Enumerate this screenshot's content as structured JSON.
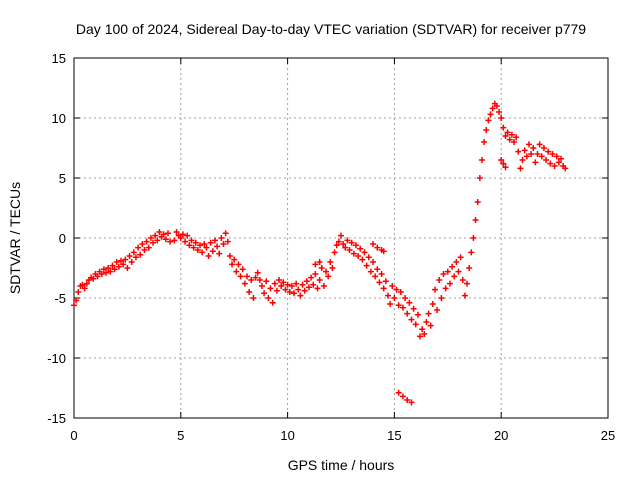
{
  "chart_data": {
    "type": "scatter",
    "title": "Day 100 of 2024, Sidereal Day-to-day VTEC variation (SDTVAR) for receiver p779",
    "xlabel": "GPS time / hours",
    "ylabel": "SDTVAR / TECUs",
    "xlim": [
      0,
      25
    ],
    "ylim": [
      -15,
      15
    ],
    "xticks": [
      "0",
      "5",
      "10",
      "15",
      "20",
      "25"
    ],
    "yticks": [
      "-15",
      "-10",
      "-5",
      "0",
      "5",
      "10",
      "15"
    ],
    "grid": true,
    "marker": "plus",
    "color": "#ff0000",
    "series": [
      {
        "points": [
          [
            0.0,
            -5.6
          ],
          [
            0.1,
            -5.2
          ],
          [
            0.2,
            -4.5
          ],
          [
            0.3,
            -4.0
          ],
          [
            0.4,
            -3.9
          ],
          [
            0.5,
            -4.2
          ],
          [
            0.6,
            -3.8
          ],
          [
            0.7,
            -3.5
          ],
          [
            0.8,
            -3.3
          ],
          [
            0.9,
            -3.4
          ],
          [
            1.0,
            -3.0
          ],
          [
            1.1,
            -3.2
          ],
          [
            1.2,
            -2.8
          ],
          [
            1.3,
            -3.0
          ],
          [
            1.4,
            -2.6
          ],
          [
            1.5,
            -2.9
          ],
          [
            1.6,
            -2.5
          ],
          [
            1.7,
            -2.8
          ],
          [
            1.8,
            -2.3
          ],
          [
            1.9,
            -2.6
          ],
          [
            2.0,
            -2.0
          ],
          [
            2.1,
            -2.4
          ],
          [
            2.2,
            -1.9
          ],
          [
            2.3,
            -2.2
          ],
          [
            2.4,
            -1.8
          ],
          [
            2.5,
            -2.5
          ],
          [
            2.6,
            -1.5
          ],
          [
            2.7,
            -2.0
          ],
          [
            2.8,
            -1.2
          ],
          [
            2.9,
            -1.6
          ],
          [
            3.0,
            -0.8
          ],
          [
            3.1,
            -1.4
          ],
          [
            3.2,
            -0.5
          ],
          [
            3.3,
            -1.0
          ],
          [
            3.4,
            -0.3
          ],
          [
            3.5,
            -0.8
          ],
          [
            3.6,
            0.0
          ],
          [
            3.7,
            -0.4
          ],
          [
            3.8,
            0.2
          ],
          [
            3.9,
            -0.2
          ],
          [
            4.0,
            0.5
          ],
          [
            4.1,
            0.1
          ],
          [
            4.2,
            0.3
          ],
          [
            4.3,
            -0.1
          ],
          [
            4.4,
            0.4
          ],
          [
            4.5,
            -0.3
          ],
          [
            4.7,
            -0.2
          ],
          [
            4.8,
            0.5
          ],
          [
            4.9,
            0.2
          ],
          [
            5.0,
            0.0
          ],
          [
            5.1,
            0.3
          ],
          [
            5.2,
            -0.3
          ],
          [
            5.3,
            0.2
          ],
          [
            5.4,
            -0.6
          ],
          [
            5.5,
            -0.2
          ],
          [
            5.6,
            -0.8
          ],
          [
            5.7,
            -0.4
          ],
          [
            5.8,
            -1.0
          ],
          [
            5.9,
            -0.6
          ],
          [
            6.0,
            -1.2
          ],
          [
            6.1,
            -0.5
          ],
          [
            6.2,
            -0.8
          ],
          [
            6.3,
            -1.5
          ],
          [
            6.4,
            -0.4
          ],
          [
            6.5,
            -1.1
          ],
          [
            6.6,
            -0.2
          ],
          [
            6.7,
            -0.7
          ],
          [
            6.8,
            -1.3
          ],
          [
            6.9,
            0.0
          ],
          [
            7.0,
            -0.5
          ],
          [
            7.1,
            0.4
          ],
          [
            7.2,
            -0.3
          ],
          [
            7.3,
            -1.5
          ],
          [
            7.4,
            -2.2
          ],
          [
            7.5,
            -1.8
          ],
          [
            7.6,
            -2.8
          ],
          [
            7.7,
            -2.2
          ],
          [
            7.8,
            -3.2
          ],
          [
            7.9,
            -2.6
          ],
          [
            8.0,
            -3.8
          ],
          [
            8.1,
            -3.2
          ],
          [
            8.2,
            -4.5
          ],
          [
            8.3,
            -3.5
          ],
          [
            8.4,
            -5.0
          ],
          [
            8.5,
            -3.3
          ],
          [
            8.6,
            -2.9
          ],
          [
            8.7,
            -3.5
          ],
          [
            8.8,
            -4.0
          ],
          [
            8.9,
            -4.6
          ],
          [
            9.0,
            -3.6
          ],
          [
            9.1,
            -5.0
          ],
          [
            9.2,
            -4.2
          ],
          [
            9.3,
            -5.4
          ],
          [
            9.4,
            -3.8
          ],
          [
            9.5,
            -4.4
          ],
          [
            9.6,
            -3.5
          ],
          [
            9.7,
            -4.0
          ],
          [
            9.8,
            -3.7
          ],
          [
            9.9,
            -4.3
          ],
          [
            10.0,
            -3.9
          ],
          [
            10.1,
            -4.5
          ],
          [
            10.2,
            -4.0
          ],
          [
            10.3,
            -4.6
          ],
          [
            10.4,
            -3.8
          ],
          [
            10.5,
            -4.3
          ],
          [
            10.6,
            -4.8
          ],
          [
            10.7,
            -3.9
          ],
          [
            10.8,
            -4.4
          ],
          [
            10.9,
            -3.6
          ],
          [
            11.0,
            -4.1
          ],
          [
            11.1,
            -3.3
          ],
          [
            11.2,
            -3.9
          ],
          [
            11.3,
            -3.0
          ],
          [
            11.4,
            -4.2
          ],
          [
            11.5,
            -3.5
          ],
          [
            11.6,
            -2.5
          ],
          [
            11.7,
            -4.0
          ],
          [
            11.8,
            -2.8
          ],
          [
            11.9,
            -3.2
          ],
          [
            12.0,
            -2.0
          ],
          [
            12.1,
            -2.5
          ],
          [
            11.5,
            -2.0
          ],
          [
            11.3,
            -2.2
          ],
          [
            12.2,
            -1.2
          ],
          [
            12.3,
            -0.6
          ],
          [
            12.4,
            -0.3
          ],
          [
            12.5,
            0.2
          ],
          [
            12.6,
            -0.5
          ],
          [
            12.7,
            -0.8
          ],
          [
            12.8,
            -0.2
          ],
          [
            12.9,
            -1.0
          ],
          [
            13.0,
            -0.4
          ],
          [
            13.1,
            -1.3
          ],
          [
            13.2,
            -0.6
          ],
          [
            13.3,
            -1.5
          ],
          [
            13.4,
            -0.9
          ],
          [
            13.5,
            -1.8
          ],
          [
            13.6,
            -1.2
          ],
          [
            13.7,
            -2.3
          ],
          [
            13.8,
            -1.6
          ],
          [
            13.9,
            -2.8
          ],
          [
            14.0,
            -2.0
          ],
          [
            14.1,
            -3.2
          ],
          [
            14.2,
            -2.6
          ],
          [
            14.3,
            -3.7
          ],
          [
            14.0,
            -0.5
          ],
          [
            14.2,
            -0.8
          ],
          [
            14.4,
            -1.0
          ],
          [
            14.5,
            -1.1
          ],
          [
            14.4,
            -3.0
          ],
          [
            14.5,
            -4.2
          ],
          [
            14.6,
            -3.6
          ],
          [
            14.7,
            -4.8
          ],
          [
            14.8,
            -5.5
          ],
          [
            14.9,
            -4.0
          ],
          [
            15.0,
            -5.0
          ],
          [
            15.1,
            -4.3
          ],
          [
            15.2,
            -5.6
          ],
          [
            15.3,
            -4.5
          ],
          [
            15.4,
            -5.8
          ],
          [
            15.5,
            -5.0
          ],
          [
            15.6,
            -6.3
          ],
          [
            15.7,
            -5.4
          ],
          [
            15.8,
            -6.8
          ],
          [
            15.9,
            -5.9
          ],
          [
            16.0,
            -7.2
          ],
          [
            16.1,
            -6.4
          ],
          [
            16.2,
            -8.2
          ],
          [
            16.3,
            -7.6
          ],
          [
            16.4,
            -8.0
          ],
          [
            16.5,
            -7.0
          ],
          [
            16.6,
            -6.3
          ],
          [
            16.7,
            -7.3
          ],
          [
            16.8,
            -5.5
          ],
          [
            16.9,
            -4.3
          ],
          [
            17.0,
            -6.0
          ],
          [
            17.1,
            -3.5
          ],
          [
            17.2,
            -5.0
          ],
          [
            17.3,
            -3.0
          ],
          [
            17.4,
            -4.2
          ],
          [
            17.5,
            -2.8
          ],
          [
            17.6,
            -3.8
          ],
          [
            17.7,
            -2.4
          ],
          [
            17.8,
            -3.2
          ],
          [
            17.9,
            -2.0
          ],
          [
            18.0,
            -2.8
          ],
          [
            18.1,
            -1.6
          ],
          [
            18.2,
            -3.5
          ],
          [
            18.3,
            -4.8
          ],
          [
            18.4,
            -3.8
          ],
          [
            18.5,
            -2.5
          ],
          [
            18.6,
            -1.2
          ],
          [
            18.7,
            0.0
          ],
          [
            18.8,
            1.5
          ],
          [
            18.9,
            3.0
          ],
          [
            19.0,
            5.0
          ],
          [
            19.1,
            6.5
          ],
          [
            19.2,
            8.0
          ],
          [
            19.3,
            9.0
          ],
          [
            19.4,
            9.8
          ],
          [
            19.5,
            10.3
          ],
          [
            19.6,
            10.8
          ],
          [
            19.7,
            11.2
          ],
          [
            19.8,
            11.0
          ],
          [
            19.9,
            10.5
          ],
          [
            20.0,
            10.0
          ],
          [
            20.1,
            9.2
          ],
          [
            20.2,
            8.5
          ],
          [
            20.3,
            8.8
          ],
          [
            20.4,
            8.2
          ],
          [
            20.5,
            8.6
          ],
          [
            20.6,
            8.0
          ],
          [
            20.7,
            8.4
          ],
          [
            20.8,
            7.2
          ],
          [
            20.9,
            5.8
          ],
          [
            21.0,
            6.5
          ],
          [
            21.1,
            7.3
          ],
          [
            21.2,
            6.8
          ],
          [
            21.3,
            7.8
          ],
          [
            21.4,
            7.0
          ],
          [
            21.5,
            7.5
          ],
          [
            21.6,
            6.3
          ],
          [
            21.7,
            7.0
          ],
          [
            21.8,
            7.8
          ],
          [
            21.9,
            6.8
          ],
          [
            22.0,
            7.5
          ],
          [
            22.1,
            6.5
          ],
          [
            22.2,
            7.2
          ],
          [
            22.3,
            6.2
          ],
          [
            22.4,
            7.0
          ],
          [
            22.5,
            6.0
          ],
          [
            22.6,
            6.8
          ],
          [
            22.7,
            6.3
          ],
          [
            22.8,
            6.6
          ],
          [
            22.9,
            6.0
          ],
          [
            23.0,
            5.8
          ],
          [
            20.0,
            6.5
          ],
          [
            20.1,
            6.2
          ],
          [
            20.2,
            5.9
          ],
          [
            15.2,
            -12.9
          ],
          [
            15.4,
            -13.2
          ],
          [
            15.6,
            -13.5
          ],
          [
            15.8,
            -13.7
          ]
        ]
      }
    ]
  }
}
